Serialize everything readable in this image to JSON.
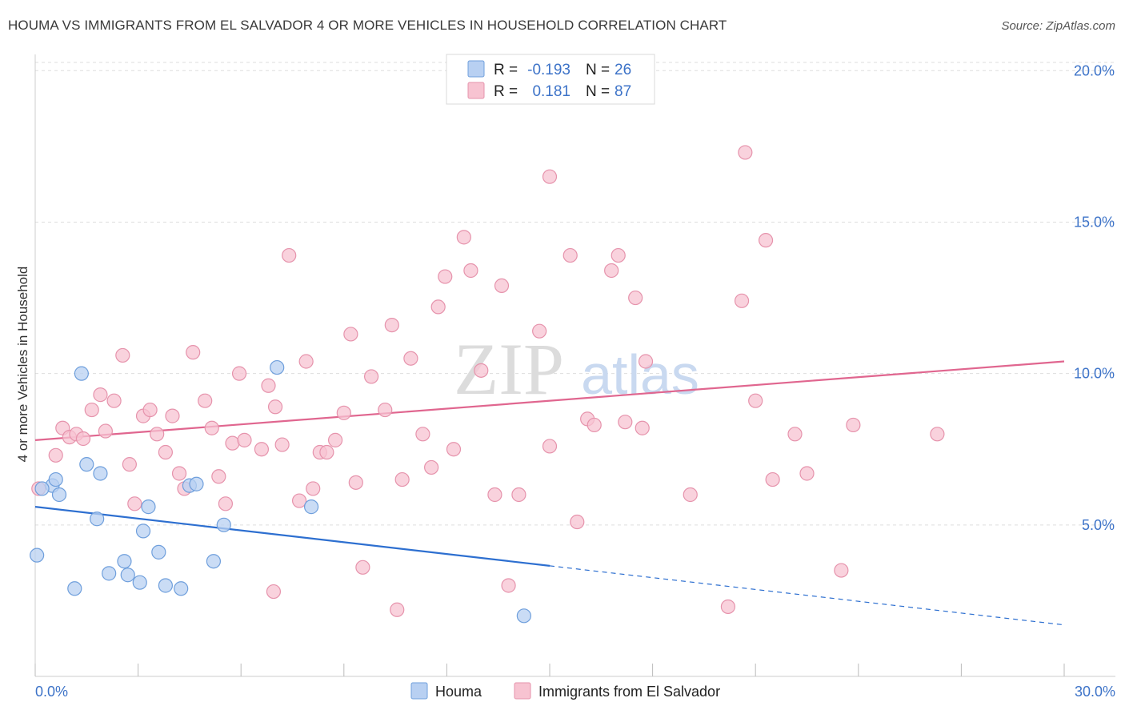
{
  "title": "HOUMA VS IMMIGRANTS FROM EL SALVADOR 4 OR MORE VEHICLES IN HOUSEHOLD CORRELATION CHART",
  "source": "Source: ZipAtlas.com",
  "watermark": {
    "zip": "ZIP",
    "atlas": "atlas"
  },
  "colors": {
    "houma_fill": "#b8d0f2",
    "houma_stroke": "#6f9fdc",
    "houma_line": "#2d6fd0",
    "salv_fill": "#f7c3d1",
    "salv_stroke": "#e693ac",
    "salv_line": "#e0668f",
    "tick_text": "#3d73c8",
    "grid": "#dddddd"
  },
  "legend": {
    "rows": [
      {
        "r_label": "R =",
        "r_value": "-0.193",
        "n_label": "N =",
        "n_value": "26"
      },
      {
        "r_label": "R =",
        "r_value": "0.181",
        "n_label": "N =",
        "n_value": "87"
      }
    ]
  },
  "chart_data": {
    "type": "scatter",
    "title": "HOUMA VS IMMIGRANTS FROM EL SALVADOR 4 OR MORE VEHICLES IN HOUSEHOLD CORRELATION CHART",
    "xlabel": "",
    "ylabel": "4 or more Vehicles in Household",
    "xlim": [
      0,
      30
    ],
    "ylim": [
      0,
      20.8
    ],
    "x_tick_labels": [
      "0.0%",
      "30.0%"
    ],
    "y_ticks": [
      5,
      10,
      15,
      20
    ],
    "y_tick_labels": [
      "5.0%",
      "10.0%",
      "15.0%",
      "20.0%"
    ],
    "grid": true,
    "legend_position": "top-center",
    "series": [
      {
        "name": "Houma",
        "r": -0.193,
        "n": 26,
        "trend": {
          "x_start": 0,
          "y_start": 5.6,
          "x_solid_end": 15,
          "x_end": 30,
          "y_end": 1.7
        },
        "points": [
          [
            0.05,
            4.0
          ],
          [
            0.5,
            6.3
          ],
          [
            0.6,
            6.5
          ],
          [
            0.7,
            6.0
          ],
          [
            1.15,
            2.9
          ],
          [
            1.35,
            10.0
          ],
          [
            1.5,
            7.0
          ],
          [
            1.8,
            5.2
          ],
          [
            1.9,
            6.7
          ],
          [
            2.15,
            3.4
          ],
          [
            2.6,
            3.8
          ],
          [
            2.7,
            3.35
          ],
          [
            3.05,
            3.1
          ],
          [
            3.15,
            4.8
          ],
          [
            3.3,
            5.6
          ],
          [
            3.6,
            4.1
          ],
          [
            3.8,
            3.0
          ],
          [
            4.25,
            2.9
          ],
          [
            4.5,
            6.3
          ],
          [
            4.7,
            6.35
          ],
          [
            5.2,
            3.8
          ],
          [
            5.5,
            5.0
          ],
          [
            7.05,
            10.2
          ],
          [
            8.05,
            5.6
          ],
          [
            14.25,
            2.0
          ],
          [
            0.2,
            6.2
          ]
        ]
      },
      {
        "name": "Immigrants from El Salvador",
        "r": 0.181,
        "n": 87,
        "trend": {
          "x_start": 0,
          "y_start": 7.8,
          "x_end": 30,
          "y_end": 10.4
        },
        "points": [
          [
            0.1,
            6.2
          ],
          [
            0.6,
            7.3
          ],
          [
            0.8,
            8.2
          ],
          [
            1.0,
            7.9
          ],
          [
            1.2,
            8.0
          ],
          [
            1.4,
            7.85
          ],
          [
            1.65,
            8.8
          ],
          [
            1.9,
            9.3
          ],
          [
            2.05,
            8.1
          ],
          [
            2.3,
            9.1
          ],
          [
            2.55,
            10.6
          ],
          [
            2.75,
            7.0
          ],
          [
            2.9,
            5.7
          ],
          [
            3.15,
            8.6
          ],
          [
            3.35,
            8.8
          ],
          [
            3.55,
            8.0
          ],
          [
            3.8,
            7.4
          ],
          [
            4.0,
            8.6
          ],
          [
            4.2,
            6.7
          ],
          [
            4.35,
            6.2
          ],
          [
            4.6,
            10.7
          ],
          [
            4.95,
            9.1
          ],
          [
            5.15,
            8.2
          ],
          [
            5.35,
            6.6
          ],
          [
            5.55,
            5.7
          ],
          [
            5.75,
            7.7
          ],
          [
            5.95,
            10.0
          ],
          [
            6.1,
            7.8
          ],
          [
            6.6,
            7.5
          ],
          [
            6.8,
            9.6
          ],
          [
            6.95,
            2.8
          ],
          [
            7.0,
            8.9
          ],
          [
            7.2,
            7.65
          ],
          [
            7.4,
            13.9
          ],
          [
            7.7,
            5.8
          ],
          [
            7.9,
            10.4
          ],
          [
            8.1,
            6.2
          ],
          [
            8.3,
            7.4
          ],
          [
            8.5,
            7.4
          ],
          [
            8.75,
            7.8
          ],
          [
            9.0,
            8.7
          ],
          [
            9.2,
            11.3
          ],
          [
            9.35,
            6.4
          ],
          [
            9.8,
            9.9
          ],
          [
            10.2,
            8.8
          ],
          [
            10.4,
            11.6
          ],
          [
            10.55,
            2.2
          ],
          [
            10.7,
            6.5
          ],
          [
            10.95,
            10.5
          ],
          [
            11.3,
            8.0
          ],
          [
            11.55,
            6.9
          ],
          [
            11.75,
            12.2
          ],
          [
            11.95,
            13.2
          ],
          [
            12.2,
            7.5
          ],
          [
            12.5,
            14.5
          ],
          [
            12.7,
            13.4
          ],
          [
            13.0,
            10.1
          ],
          [
            13.4,
            6.0
          ],
          [
            13.6,
            12.9
          ],
          [
            13.8,
            3.0
          ],
          [
            14.1,
            6.0
          ],
          [
            14.7,
            11.4
          ],
          [
            15.0,
            7.6
          ],
          [
            15.0,
            16.5
          ],
          [
            15.6,
            13.9
          ],
          [
            15.8,
            5.1
          ],
          [
            16.1,
            8.5
          ],
          [
            16.8,
            13.4
          ],
          [
            17.0,
            13.9
          ],
          [
            17.2,
            8.4
          ],
          [
            17.5,
            12.5
          ],
          [
            17.8,
            10.4
          ],
          [
            19.1,
            6.0
          ],
          [
            20.2,
            2.3
          ],
          [
            20.6,
            12.4
          ],
          [
            20.7,
            17.3
          ],
          [
            21.0,
            9.1
          ],
          [
            21.3,
            14.4
          ],
          [
            21.5,
            6.5
          ],
          [
            22.15,
            8.0
          ],
          [
            22.5,
            6.7
          ],
          [
            23.5,
            3.5
          ],
          [
            23.85,
            8.3
          ],
          [
            26.3,
            8.0
          ],
          [
            9.55,
            3.6
          ],
          [
            16.3,
            8.3
          ],
          [
            17.7,
            8.2
          ]
        ]
      }
    ]
  },
  "bottom_legend": [
    "Houma",
    "Immigrants from El Salvador"
  ]
}
